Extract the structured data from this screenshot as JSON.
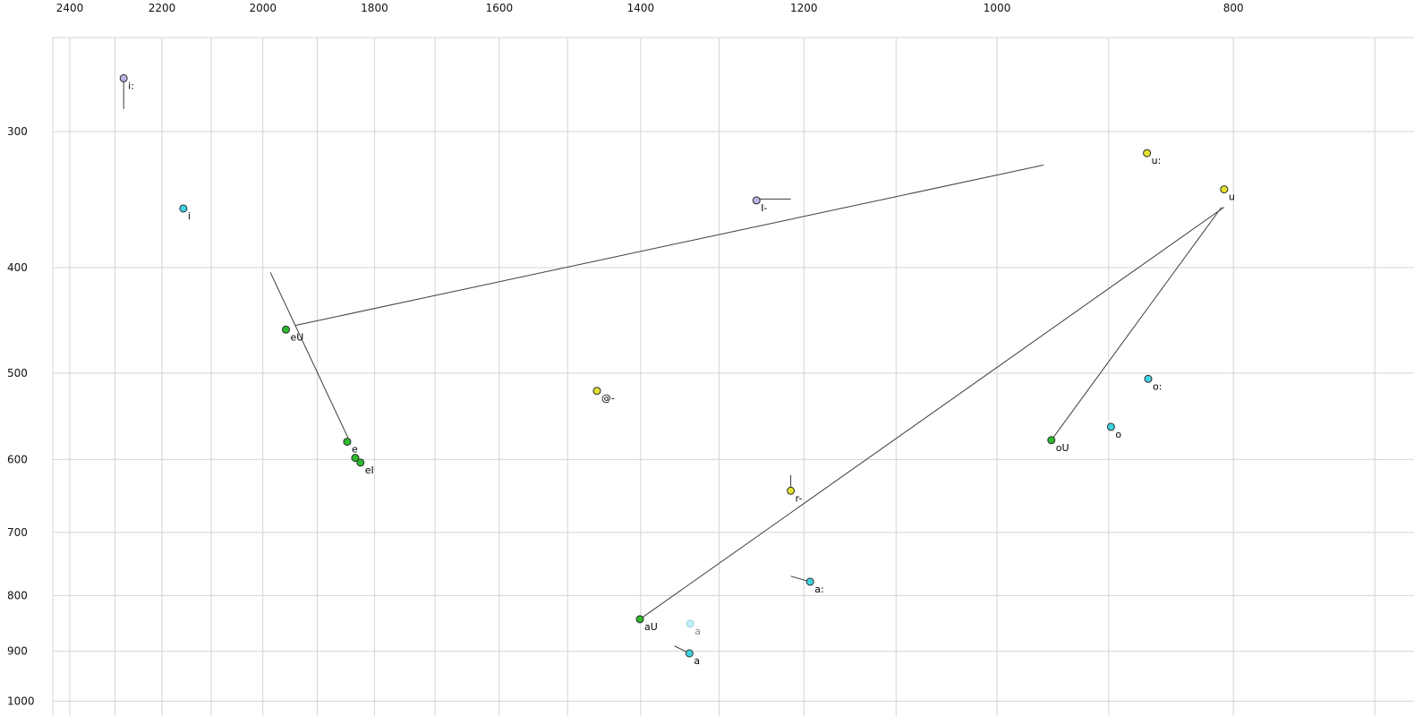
{
  "chart_data": {
    "type": "scatter",
    "title": "",
    "x_axis": {
      "position": "top",
      "scale": "log",
      "reversed": true,
      "ticks": [
        2400,
        2200,
        2000,
        1800,
        1600,
        1400,
        1200,
        1000,
        800
      ],
      "grid_values": [
        2400,
        2300,
        2200,
        2100,
        2000,
        1900,
        1800,
        1700,
        1600,
        1500,
        1400,
        1300,
        1200,
        1100,
        1000,
        900,
        800,
        700
      ]
    },
    "y_axis": {
      "position": "left",
      "scale": "log",
      "increases_downward": true,
      "ticks": [
        300,
        400,
        500,
        600,
        700,
        800,
        900,
        1000
      ],
      "grid_values": [
        300,
        400,
        500,
        600,
        700,
        800,
        900,
        1000
      ]
    },
    "points": [
      {
        "label": "i:",
        "f2": 2281,
        "f1": 268,
        "color": "lavender"
      },
      {
        "label": "i",
        "f2": 2156,
        "f1": 353,
        "color": "cyan"
      },
      {
        "label": "u:",
        "f2": 868,
        "f1": 314,
        "color": "yellow"
      },
      {
        "label": "u",
        "f2": 807,
        "f1": 339,
        "color": "yellow"
      },
      {
        "label": "I-",
        "f2": 1255,
        "f1": 347,
        "color": "lavender"
      },
      {
        "label": "eU",
        "f2": 1957,
        "f1": 456,
        "color": "green"
      },
      {
        "label": "@-",
        "f2": 1459,
        "f1": 519,
        "color": "yellow"
      },
      {
        "label": "e",
        "f2": 1847,
        "f1": 578,
        "color": "green"
      },
      {
        "label": "",
        "f2": 1833,
        "f1": 598,
        "color": "green"
      },
      {
        "label": "eI",
        "f2": 1824,
        "f1": 604,
        "color": "green"
      },
      {
        "label": "r-",
        "f2": 1215,
        "f1": 641,
        "color": "yellow"
      },
      {
        "label": "oU",
        "f2": 950,
        "f1": 576,
        "color": "green"
      },
      {
        "label": "o:",
        "f2": 867,
        "f1": 506,
        "color": "cyan"
      },
      {
        "label": "o",
        "f2": 898,
        "f1": 560,
        "color": "cyan"
      },
      {
        "label": "a:",
        "f2": 1193,
        "f1": 777,
        "color": "cyan"
      },
      {
        "label": "aU",
        "f2": 1401,
        "f1": 841,
        "color": "green"
      },
      {
        "label": "a",
        "f2": 1336,
        "f1": 849,
        "color": "faded",
        "label_color": "#8a8a8a"
      },
      {
        "label": "a",
        "f2": 1337,
        "f1": 904,
        "color": "cyan"
      }
    ],
    "segments": [
      {
        "name": "i-long-tail",
        "from": [
          2281,
          270
        ],
        "to": [
          2281,
          286
        ]
      },
      {
        "name": "barred-i-tail",
        "from": [
          1255,
          346
        ],
        "to": [
          1215,
          346
        ]
      },
      {
        "name": "eI-glide",
        "from": [
          1986,
          404
        ],
        "to": [
          1843,
          577
        ]
      },
      {
        "name": "eU-glide",
        "from": [
          1940,
          452
        ],
        "to": [
          957,
          322
        ]
      },
      {
        "name": "aU-glide",
        "from": [
          1401,
          841
        ],
        "to": [
          807,
          352
        ]
      },
      {
        "name": "oU-glide",
        "from": [
          950,
          576
        ],
        "to": [
          809,
          352
        ]
      },
      {
        "name": "r-tail",
        "from": [
          1215,
          620
        ],
        "to": [
          1215,
          639
        ]
      },
      {
        "name": "a-long-tail",
        "from": [
          1215,
          768
        ],
        "to": [
          1193,
          777
        ]
      },
      {
        "name": "a-tail",
        "from": [
          1356,
          890
        ],
        "to": [
          1337,
          904
        ]
      }
    ],
    "palette": {
      "green": "#2db92d",
      "yellow": "#e1e130",
      "cyan": "#3fd2e0",
      "lavender": "#b9b3e6",
      "faded": "#bfeef5"
    },
    "style": {
      "background": "#ffffff",
      "grid_color": "#d4d4d4",
      "line_color": "#3c3c3c",
      "point_stroke": "#2b2b2b",
      "faded_stroke": "#9ad4de"
    }
  }
}
